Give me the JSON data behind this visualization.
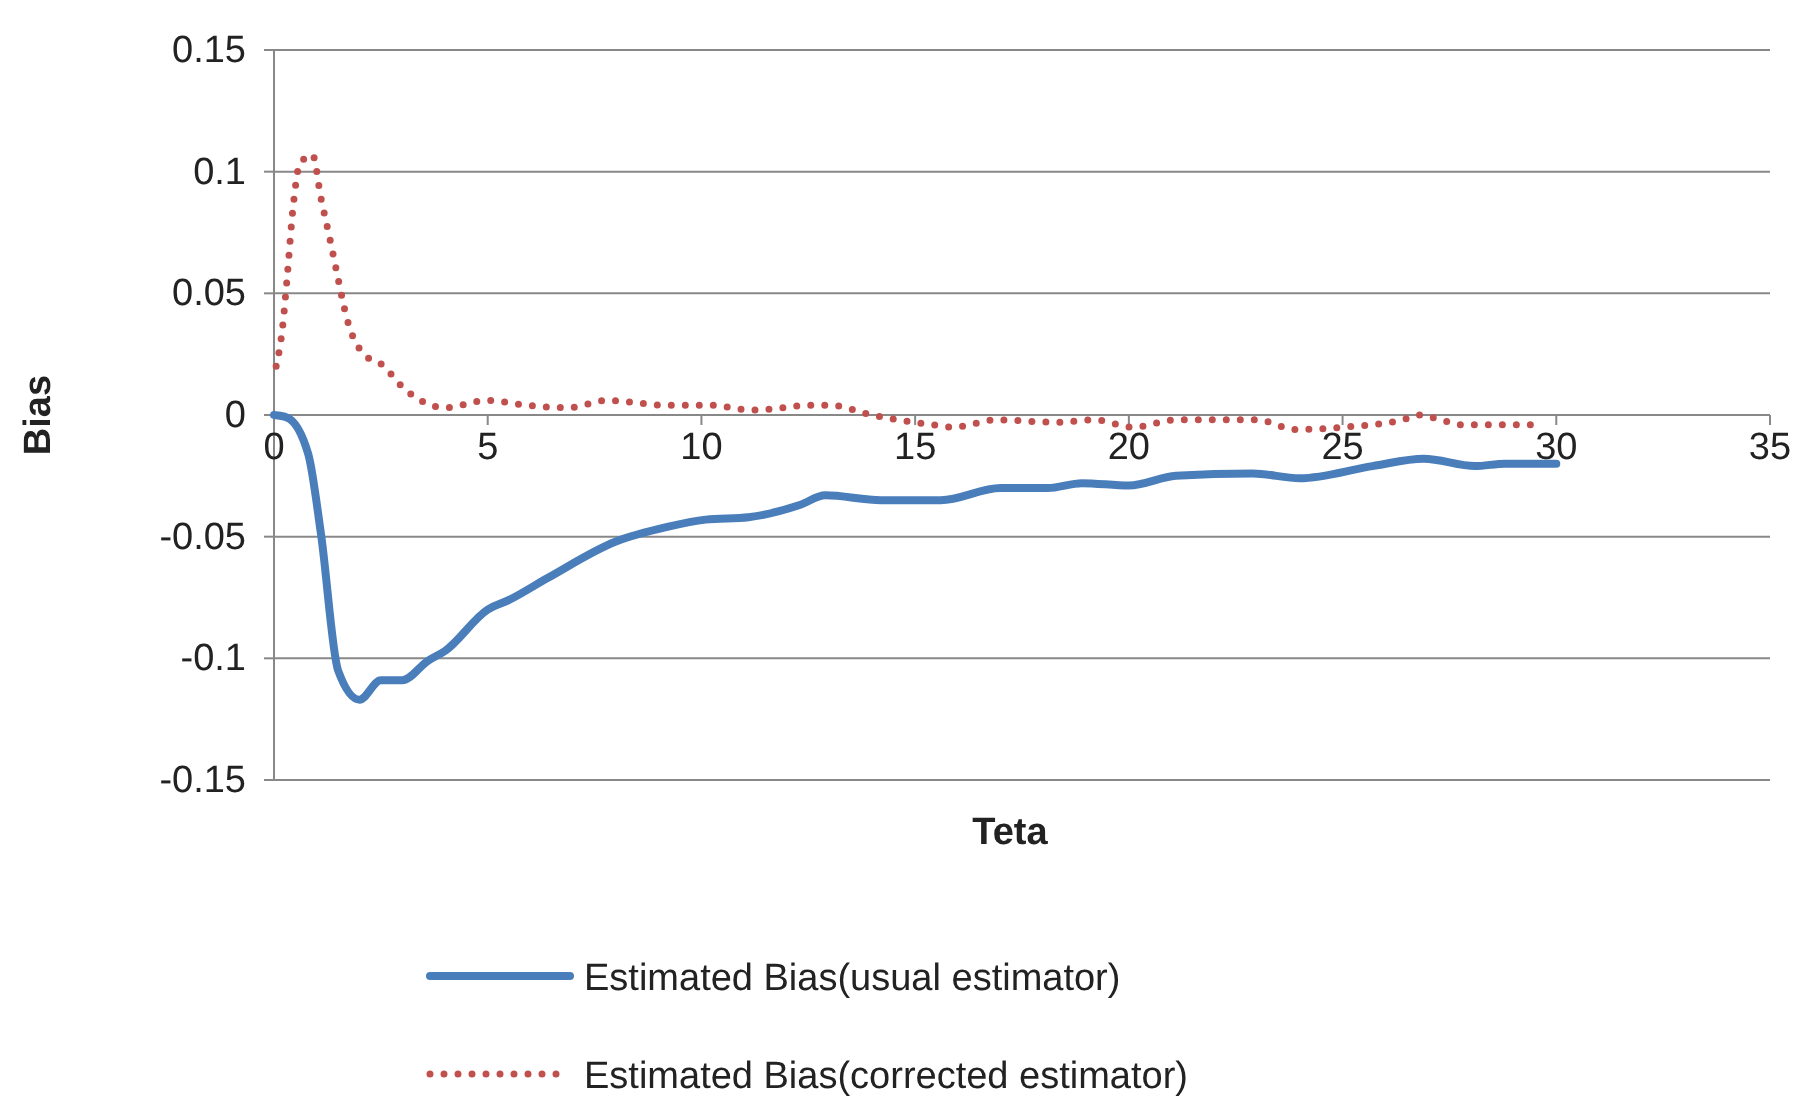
{
  "chart_data": {
    "type": "line",
    "xlabel": "Teta",
    "ylabel": "Bias",
    "xlim": [
      0,
      35
    ],
    "xticks": [
      0,
      5,
      10,
      15,
      20,
      25,
      30,
      35
    ],
    "ylim": [
      -0.15,
      0.15
    ],
    "yticks": [
      -0.15,
      -0.1,
      -0.05,
      0,
      0.05,
      0.1,
      0.15
    ],
    "grid": "y",
    "legend": "bottom",
    "marker": "none",
    "series": [
      {
        "name": "Estimated Bias(usual estimator)",
        "color": "#4a7ebb",
        "line_style": "solid",
        "x": [
          0,
          0.3,
          0.8,
          1.1,
          1.5,
          2.0,
          2.5,
          3.0,
          3.6,
          4.0,
          5.0,
          5.5,
          6.4,
          8.0,
          9.2,
          10.1,
          11.1,
          12.3,
          12.9,
          14.2,
          15.6,
          17.0,
          18.1,
          18.9,
          20.0,
          21.1,
          22.9,
          24.0,
          25.7,
          26.9,
          28.1,
          28.8,
          30
        ],
        "values": [
          0,
          -0.001,
          -0.016,
          -0.049,
          -0.105,
          -0.117,
          -0.109,
          -0.109,
          -0.101,
          -0.097,
          -0.08,
          -0.076,
          -0.067,
          -0.052,
          -0.046,
          -0.043,
          -0.042,
          -0.037,
          -0.033,
          -0.035,
          -0.035,
          -0.03,
          -0.03,
          -0.028,
          -0.029,
          -0.025,
          -0.024,
          -0.026,
          -0.021,
          -0.018,
          -0.021,
          -0.02,
          -0.02
        ]
      },
      {
        "name": "Estimated Bias(corrected estimator)",
        "color": "#c0504d",
        "line_style": "dotted",
        "x": [
          0.05,
          0.2,
          0.3,
          0.45,
          0.6,
          0.9,
          1.1,
          1.3,
          1.5,
          1.7,
          2.1,
          2.5,
          3.1,
          4.0,
          5.0,
          5.9,
          6.9,
          7.8,
          9.2,
          10.2,
          11.2,
          12.6,
          13.0,
          14.0,
          15.4,
          15.9,
          16.9,
          18.3,
          19.2,
          20.1,
          21.1,
          23.0,
          23.9,
          25.0,
          26.4,
          26.8,
          27.3,
          27.8,
          29.6
        ],
        "values": [
          0.02,
          0.036,
          0.055,
          0.086,
          0.103,
          0.107,
          0.089,
          0.073,
          0.056,
          0.04,
          0.025,
          0.021,
          0.01,
          0.003,
          0.006,
          0.004,
          0.003,
          0.006,
          0.004,
          0.004,
          0.002,
          0.004,
          0.004,
          0,
          -0.004,
          -0.005,
          -0.002,
          -0.003,
          -0.002,
          -0.005,
          -0.002,
          -0.002,
          -0.006,
          -0.005,
          -0.002,
          0,
          -0.002,
          -0.004,
          -0.004
        ]
      }
    ]
  }
}
